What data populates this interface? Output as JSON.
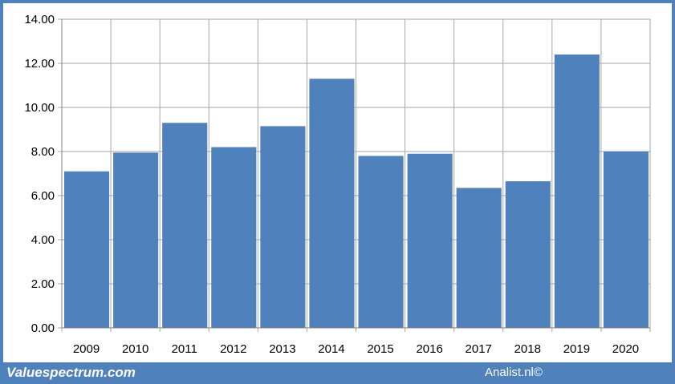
{
  "chart_data": {
    "type": "bar",
    "title": "",
    "xlabel": "",
    "ylabel": "",
    "categories": [
      "2009",
      "2010",
      "2011",
      "2012",
      "2013",
      "2014",
      "2015",
      "2016",
      "2017",
      "2018",
      "2019",
      "2020"
    ],
    "values": [
      7.1,
      7.95,
      9.3,
      8.2,
      9.15,
      11.3,
      7.8,
      7.9,
      6.35,
      6.65,
      12.4,
      8.0
    ],
    "ylim": [
      0,
      14
    ],
    "yticks": [
      "0.00",
      "2.00",
      "4.00",
      "6.00",
      "8.00",
      "10.00",
      "12.00",
      "14.00"
    ],
    "grid": "on",
    "legend": "none",
    "bar_color": "#4f81bd",
    "grid_color": "#a6a6a6"
  },
  "footer": {
    "left_text": "Valuespectrum.com",
    "right_text": "Analist.nl©"
  },
  "colors": {
    "frame": "#4f81bd",
    "background": "#ffffff"
  }
}
